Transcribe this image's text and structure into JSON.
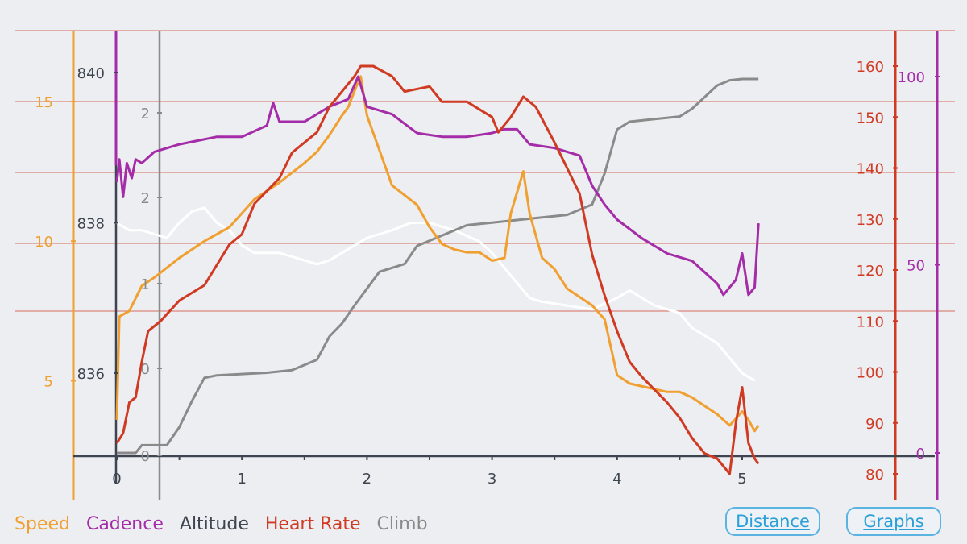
{
  "legend": {
    "speed": "Speed",
    "cadence": "Cadence",
    "altitude": "Altitude",
    "heart_rate": "Heart Rate",
    "climb": "Climb"
  },
  "buttons": {
    "distance": "Distance",
    "graphs": "Graphs"
  },
  "colors": {
    "speed": "#f0a030",
    "cadence": "#a52ca8",
    "altitude": "#3e4550",
    "heart_rate": "#d03a22",
    "climb": "#8a8a8a",
    "white_line": "#ffffff",
    "grid": "#d86a60",
    "background": "#eceef1"
  },
  "chart_data": {
    "type": "line",
    "grid": true,
    "x_axis": {
      "ticks": [
        "0",
        "1",
        "2",
        "3",
        "4",
        "5"
      ],
      "range": [
        0,
        5.15
      ]
    },
    "axes": {
      "speed": {
        "ticks": [
          "5",
          "10",
          "15"
        ],
        "range": [
          2.3,
          17.3
        ]
      },
      "altitude": {
        "ticks": [
          "836",
          "838",
          "840"
        ],
        "range": [
          835.0,
          840.5
        ]
      },
      "climb": {
        "ticks": [
          "0",
          "0",
          "1",
          "2",
          "2"
        ]
      },
      "heart_rate": {
        "ticks": [
          "80",
          "90",
          "100",
          "110",
          "120",
          "130",
          "140",
          "150",
          "160"
        ],
        "range": [
          79.5,
          167
        ]
      },
      "cadence": {
        "ticks": [
          "0",
          "50",
          "100"
        ],
        "range": [
          0,
          121
        ]
      }
    },
    "series": [
      {
        "name": "Cadence",
        "color": "#a52ca8",
        "points": [
          [
            0,
            72
          ],
          [
            0.02,
            78
          ],
          [
            0.05,
            68
          ],
          [
            0.08,
            77
          ],
          [
            0.12,
            73
          ],
          [
            0.15,
            78
          ],
          [
            0.2,
            77
          ],
          [
            0.3,
            80
          ],
          [
            0.5,
            82
          ],
          [
            0.8,
            84
          ],
          [
            1.0,
            84
          ],
          [
            1.2,
            87
          ],
          [
            1.25,
            93
          ],
          [
            1.3,
            88
          ],
          [
            1.5,
            88
          ],
          [
            1.7,
            92
          ],
          [
            1.85,
            94
          ],
          [
            1.93,
            100
          ],
          [
            2.0,
            92
          ],
          [
            2.2,
            90
          ],
          [
            2.4,
            85
          ],
          [
            2.6,
            84
          ],
          [
            2.8,
            84
          ],
          [
            3.0,
            85
          ],
          [
            3.1,
            86
          ],
          [
            3.2,
            86
          ],
          [
            3.3,
            82
          ],
          [
            3.5,
            81
          ],
          [
            3.7,
            79
          ],
          [
            3.8,
            71
          ],
          [
            3.9,
            66
          ],
          [
            4.0,
            62
          ],
          [
            4.2,
            57
          ],
          [
            4.4,
            53
          ],
          [
            4.6,
            51
          ],
          [
            4.7,
            48
          ],
          [
            4.8,
            45
          ],
          [
            4.85,
            42
          ],
          [
            4.95,
            46
          ],
          [
            5.0,
            53
          ],
          [
            5.05,
            42
          ],
          [
            5.1,
            44
          ],
          [
            5.13,
            61
          ]
        ]
      },
      {
        "name": "Heart Rate",
        "color": "#d03a22",
        "points": [
          [
            0,
            86
          ],
          [
            0.05,
            88
          ],
          [
            0.1,
            94
          ],
          [
            0.15,
            95
          ],
          [
            0.2,
            102
          ],
          [
            0.25,
            108
          ],
          [
            0.35,
            110
          ],
          [
            0.5,
            114
          ],
          [
            0.7,
            117
          ],
          [
            0.9,
            125
          ],
          [
            1.0,
            127
          ],
          [
            1.1,
            133
          ],
          [
            1.3,
            138
          ],
          [
            1.4,
            143
          ],
          [
            1.6,
            147
          ],
          [
            1.7,
            152
          ],
          [
            1.8,
            155
          ],
          [
            1.9,
            158
          ],
          [
            1.95,
            160
          ],
          [
            2.05,
            160
          ],
          [
            2.2,
            158
          ],
          [
            2.3,
            155
          ],
          [
            2.5,
            156
          ],
          [
            2.6,
            153
          ],
          [
            2.8,
            153
          ],
          [
            3.0,
            150
          ],
          [
            3.05,
            147
          ],
          [
            3.15,
            150
          ],
          [
            3.25,
            154
          ],
          [
            3.35,
            152
          ],
          [
            3.5,
            145
          ],
          [
            3.6,
            140
          ],
          [
            3.7,
            135
          ],
          [
            3.8,
            123
          ],
          [
            3.9,
            115
          ],
          [
            4.0,
            108
          ],
          [
            4.1,
            102
          ],
          [
            4.2,
            99
          ],
          [
            4.4,
            94
          ],
          [
            4.5,
            91
          ],
          [
            4.6,
            87
          ],
          [
            4.7,
            84
          ],
          [
            4.8,
            83
          ],
          [
            4.9,
            80
          ],
          [
            4.95,
            90
          ],
          [
            5.0,
            97
          ],
          [
            5.05,
            86
          ],
          [
            5.1,
            83
          ],
          [
            5.13,
            82
          ]
        ]
      },
      {
        "name": "Speed",
        "color": "#f0a030",
        "points": [
          [
            0,
            3.6
          ],
          [
            0.02,
            7.3
          ],
          [
            0.1,
            7.5
          ],
          [
            0.2,
            8.4
          ],
          [
            0.3,
            8.7
          ],
          [
            0.5,
            9.4
          ],
          [
            0.7,
            10.0
          ],
          [
            0.9,
            10.5
          ],
          [
            1.0,
            11.0
          ],
          [
            1.1,
            11.5
          ],
          [
            1.3,
            12.1
          ],
          [
            1.5,
            12.8
          ],
          [
            1.6,
            13.2
          ],
          [
            1.7,
            13.8
          ],
          [
            1.8,
            14.5
          ],
          [
            1.85,
            14.8
          ],
          [
            1.92,
            15.6
          ],
          [
            1.95,
            15.9
          ],
          [
            2.0,
            14.5
          ],
          [
            2.2,
            12.0
          ],
          [
            2.4,
            11.3
          ],
          [
            2.5,
            10.5
          ],
          [
            2.6,
            9.9
          ],
          [
            2.7,
            9.7
          ],
          [
            2.8,
            9.6
          ],
          [
            2.9,
            9.6
          ],
          [
            3.0,
            9.3
          ],
          [
            3.1,
            9.4
          ],
          [
            3.15,
            11.0
          ],
          [
            3.25,
            12.5
          ],
          [
            3.3,
            11.0
          ],
          [
            3.4,
            9.4
          ],
          [
            3.5,
            9.0
          ],
          [
            3.6,
            8.3
          ],
          [
            3.7,
            8.0
          ],
          [
            3.8,
            7.7
          ],
          [
            3.9,
            7.2
          ],
          [
            4.0,
            5.2
          ],
          [
            4.1,
            4.9
          ],
          [
            4.3,
            4.7
          ],
          [
            4.4,
            4.6
          ],
          [
            4.5,
            4.6
          ],
          [
            4.6,
            4.4
          ],
          [
            4.7,
            4.1
          ],
          [
            4.8,
            3.8
          ],
          [
            4.85,
            3.6
          ],
          [
            4.9,
            3.4
          ],
          [
            5.0,
            3.9
          ],
          [
            5.05,
            3.6
          ],
          [
            5.1,
            3.2
          ],
          [
            5.13,
            3.4
          ]
        ]
      },
      {
        "name": "Climb",
        "color": "#8a8a8a",
        "points": [
          [
            0,
            0
          ],
          [
            0.15,
            0
          ],
          [
            0.2,
            0.3
          ],
          [
            0.4,
            0.3
          ],
          [
            0.5,
            1.0
          ],
          [
            0.6,
            2.0
          ],
          [
            0.7,
            2.9
          ],
          [
            0.8,
            3.0
          ],
          [
            1.0,
            3.05
          ],
          [
            1.2,
            3.1
          ],
          [
            1.4,
            3.2
          ],
          [
            1.6,
            3.6
          ],
          [
            1.7,
            4.5
          ],
          [
            1.8,
            5.0
          ],
          [
            1.9,
            5.7
          ],
          [
            2.1,
            7.0
          ],
          [
            2.3,
            7.3
          ],
          [
            2.4,
            8.0
          ],
          [
            2.6,
            8.4
          ],
          [
            2.8,
            8.8
          ],
          [
            3.0,
            8.9
          ],
          [
            3.2,
            9.0
          ],
          [
            3.4,
            9.1
          ],
          [
            3.6,
            9.2
          ],
          [
            3.8,
            9.6
          ],
          [
            3.9,
            10.8
          ],
          [
            4.0,
            12.5
          ],
          [
            4.1,
            12.8
          ],
          [
            4.3,
            12.9
          ],
          [
            4.5,
            13.0
          ],
          [
            4.6,
            13.3
          ],
          [
            4.8,
            14.2
          ],
          [
            4.9,
            14.4
          ],
          [
            5.0,
            14.45
          ],
          [
            5.13,
            14.45
          ]
        ]
      },
      {
        "name": "",
        "color": "#ffffff",
        "points": [
          [
            0,
            838.0
          ],
          [
            0.1,
            837.9
          ],
          [
            0.2,
            837.9
          ],
          [
            0.3,
            837.85
          ],
          [
            0.4,
            837.8
          ],
          [
            0.5,
            838.0
          ],
          [
            0.6,
            838.15
          ],
          [
            0.7,
            838.2
          ],
          [
            0.8,
            838.0
          ],
          [
            0.9,
            837.9
          ],
          [
            1.0,
            837.7
          ],
          [
            1.1,
            837.6
          ],
          [
            1.3,
            837.6
          ],
          [
            1.5,
            837.5
          ],
          [
            1.6,
            837.45
          ],
          [
            1.7,
            837.5
          ],
          [
            1.8,
            837.6
          ],
          [
            1.9,
            837.7
          ],
          [
            2.0,
            837.8
          ],
          [
            2.1,
            837.85
          ],
          [
            2.2,
            837.9
          ],
          [
            2.35,
            838.0
          ],
          [
            2.5,
            838.0
          ],
          [
            2.7,
            837.9
          ],
          [
            2.9,
            837.75
          ],
          [
            3.0,
            837.6
          ],
          [
            3.1,
            837.4
          ],
          [
            3.2,
            837.2
          ],
          [
            3.3,
            837.0
          ],
          [
            3.4,
            836.95
          ],
          [
            3.6,
            836.9
          ],
          [
            3.8,
            836.85
          ],
          [
            4.0,
            837.0
          ],
          [
            4.1,
            837.1
          ],
          [
            4.2,
            837.0
          ],
          [
            4.3,
            836.9
          ],
          [
            4.5,
            836.8
          ],
          [
            4.6,
            836.6
          ],
          [
            4.7,
            836.5
          ],
          [
            4.8,
            836.4
          ],
          [
            4.9,
            836.2
          ],
          [
            5.0,
            836.0
          ],
          [
            5.1,
            835.9
          ]
        ]
      }
    ]
  }
}
